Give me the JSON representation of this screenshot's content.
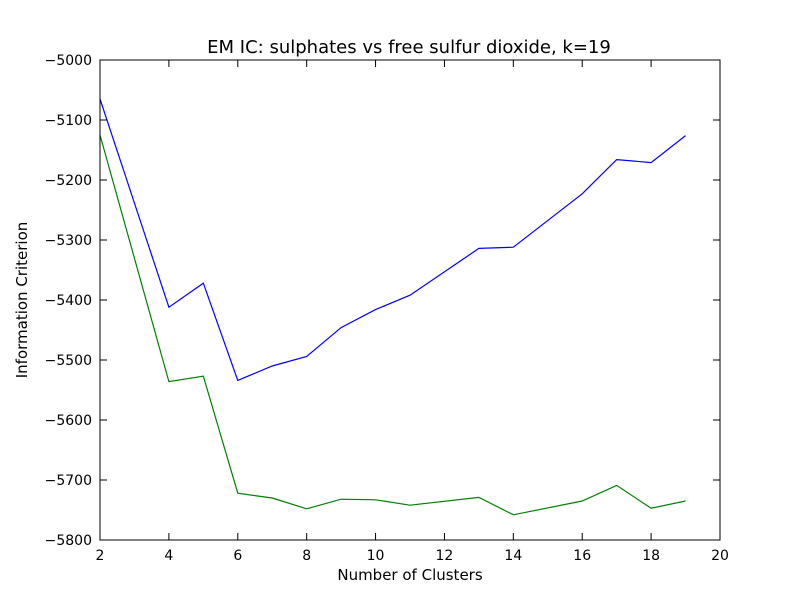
{
  "chart_data": {
    "type": "line",
    "title": "EM IC: sulphates vs free sulfur dioxide, k=19",
    "xlabel": "Number of Clusters",
    "ylabel": "Information Criterion",
    "xlim": [
      2,
      20
    ],
    "ylim": [
      -5800,
      -5000
    ],
    "xticks": [
      2,
      4,
      6,
      8,
      10,
      12,
      14,
      16,
      18,
      20
    ],
    "yticks": [
      -5000,
      -5100,
      -5200,
      -5300,
      -5400,
      -5500,
      -5600,
      -5700,
      -5800
    ],
    "grid": false,
    "legend": false,
    "x": [
      2,
      4,
      5,
      6,
      7,
      8,
      9,
      10,
      11,
      13,
      14,
      16,
      17,
      18,
      19
    ],
    "series": [
      {
        "color": "#0000ff",
        "values": [
          -5065,
          -5412,
          -5372,
          -5534,
          -5510,
          -5494,
          -5446,
          -5416,
          -5392,
          -5314,
          -5312,
          -5223,
          -5166,
          -5171,
          -5126
        ]
      },
      {
        "color": "#008000",
        "values": [
          -5125,
          -5536,
          -5527,
          -5722,
          -5730,
          -5748,
          -5732,
          -5733,
          -5742,
          -5729,
          -5758,
          -5735,
          -5709,
          -5747,
          -5735
        ]
      }
    ]
  }
}
